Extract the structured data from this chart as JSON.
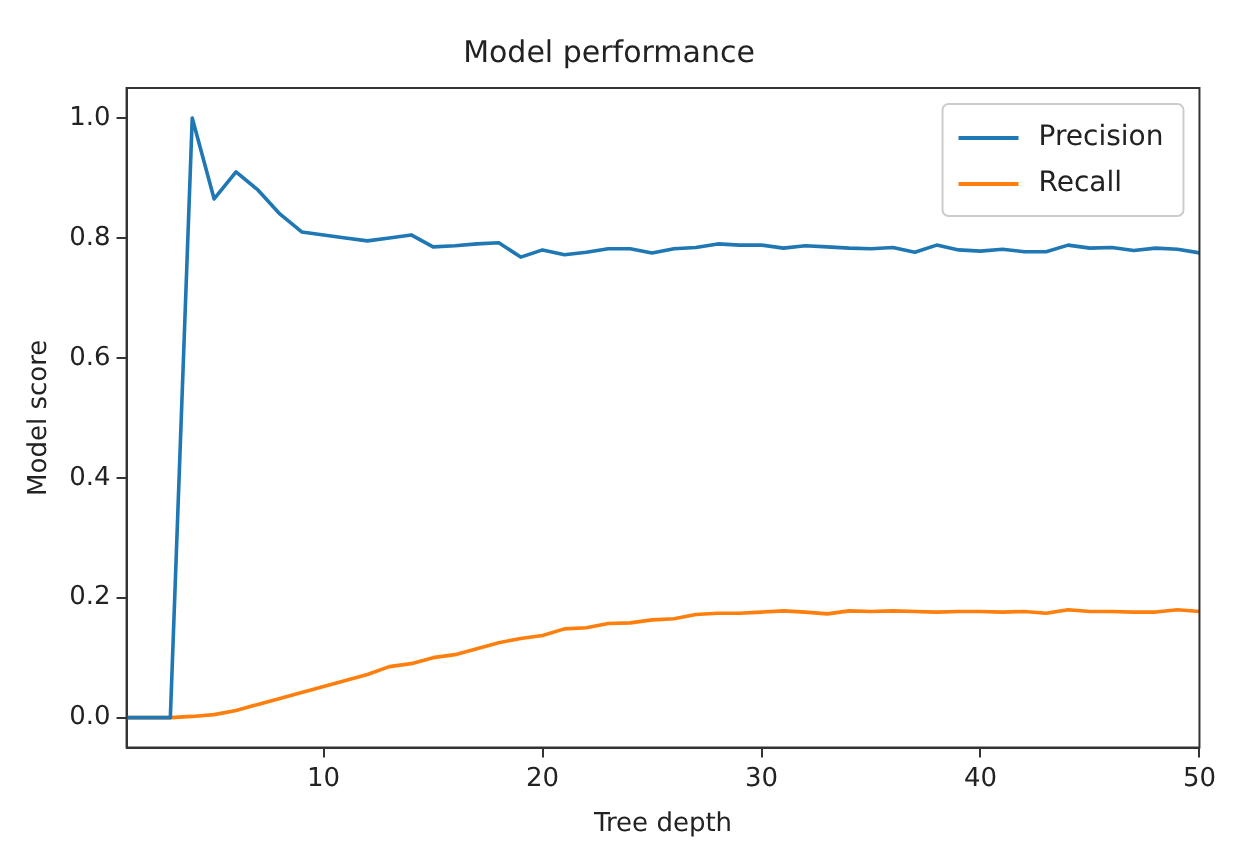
{
  "chart_data": {
    "type": "line",
    "title": "Model performance",
    "xlabel": "Tree depth",
    "ylabel": "Model score",
    "x": [
      1,
      2,
      3,
      4,
      5,
      6,
      7,
      8,
      9,
      10,
      11,
      12,
      13,
      14,
      15,
      16,
      17,
      18,
      19,
      20,
      21,
      22,
      23,
      24,
      25,
      26,
      27,
      28,
      29,
      30,
      31,
      32,
      33,
      34,
      35,
      36,
      37,
      38,
      39,
      40,
      41,
      42,
      43,
      44,
      45,
      46,
      47,
      48,
      49,
      50
    ],
    "series": [
      {
        "name": "Precision",
        "color": "#1f77b4",
        "values": [
          0,
          0,
          0,
          1.0,
          0.865,
          0.91,
          0.88,
          0.84,
          0.81,
          0.805,
          0.8,
          0.795,
          0.8,
          0.805,
          0.785,
          0.787,
          0.79,
          0.792,
          0.768,
          0.78,
          0.772,
          0.776,
          0.782,
          0.782,
          0.775,
          0.782,
          0.784,
          0.79,
          0.788,
          0.788,
          0.783,
          0.787,
          0.785,
          0.783,
          0.782,
          0.784,
          0.776,
          0.788,
          0.78,
          0.778,
          0.781,
          0.777,
          0.777,
          0.788,
          0.783,
          0.784,
          0.779,
          0.783,
          0.781,
          0.775
        ]
      },
      {
        "name": "Recall",
        "color": "#ff7f0e",
        "values": [
          0,
          0,
          0,
          0.002,
          0.005,
          0.012,
          0.022,
          0.032,
          0.042,
          0.052,
          0.062,
          0.072,
          0.085,
          0.09,
          0.1,
          0.105,
          0.115,
          0.125,
          0.132,
          0.137,
          0.148,
          0.15,
          0.157,
          0.158,
          0.163,
          0.165,
          0.172,
          0.174,
          0.174,
          0.176,
          0.178,
          0.176,
          0.173,
          0.178,
          0.177,
          0.178,
          0.177,
          0.176,
          0.177,
          0.177,
          0.176,
          0.177,
          0.174,
          0.18,
          0.177,
          0.177,
          0.176,
          0.176,
          0.18,
          0.177
        ]
      }
    ],
    "xlim": [
      1,
      50
    ],
    "xticks": [
      10,
      20,
      30,
      40,
      50
    ],
    "ylim": [
      -0.05,
      1.05
    ],
    "yticks": [
      {
        "value": 0,
        "label": "0.0"
      },
      {
        "value": 0.2,
        "label": "0.2"
      },
      {
        "value": 0.4,
        "label": "0.4"
      },
      {
        "value": 0.6,
        "label": "0.6"
      },
      {
        "value": 0.8,
        "label": "0.8"
      },
      {
        "value": 1,
        "label": "1.0"
      }
    ],
    "legend": "top right",
    "grid": false,
    "marker": "none",
    "line_style": "solid"
  }
}
